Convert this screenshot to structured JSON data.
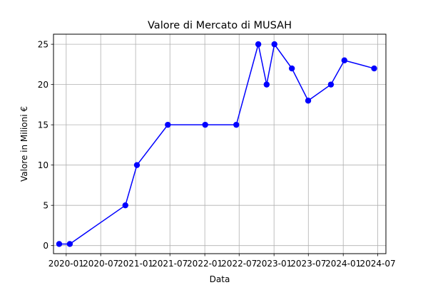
{
  "chart_data": {
    "type": "line",
    "title": "Valore di Mercato di MUSAH",
    "xlabel": "Data",
    "ylabel": "Valore in Milioni €",
    "x_ticks": [
      "2020-01",
      "2020-07",
      "2021-01",
      "2021-07",
      "2022-01",
      "2022-07",
      "2023-01",
      "2023-07",
      "2024-01",
      "2024-07"
    ],
    "y_ticks": [
      0,
      5,
      10,
      15,
      20,
      25
    ],
    "ylim": [
      -1,
      26.25
    ],
    "xlim": [
      "2019-10-26",
      "2024-08-13"
    ],
    "grid": true,
    "series": [
      {
        "color": "#0000ff",
        "marker": "circle",
        "points": [
          {
            "x": "2019-11-25",
            "y": 0.2
          },
          {
            "x": "2020-01-20",
            "y": 0.2
          },
          {
            "x": "2020-11-08",
            "y": 5
          },
          {
            "x": "2021-01-08",
            "y": 10
          },
          {
            "x": "2021-06-20",
            "y": 15
          },
          {
            "x": "2022-01-03",
            "y": 15
          },
          {
            "x": "2022-06-16",
            "y": 15
          },
          {
            "x": "2022-10-10",
            "y": 25
          },
          {
            "x": "2022-11-23",
            "y": 20
          },
          {
            "x": "2023-01-03",
            "y": 25
          },
          {
            "x": "2023-04-05",
            "y": 22
          },
          {
            "x": "2023-06-30",
            "y": 18
          },
          {
            "x": "2023-10-28",
            "y": 20
          },
          {
            "x": "2024-01-07",
            "y": 23
          },
          {
            "x": "2024-06-12",
            "y": 22
          }
        ]
      }
    ]
  }
}
